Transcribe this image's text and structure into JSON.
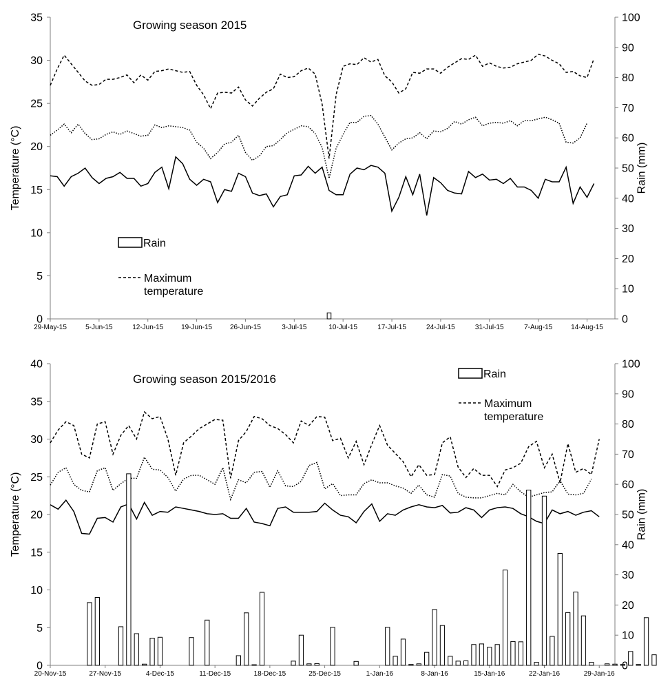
{
  "chart_data": [
    {
      "type": "line",
      "title": "Growing season 2015",
      "ylabel": "Temperature (°C)",
      "y2label": "Rain (mm)",
      "ylim": [
        0,
        35
      ],
      "y2lim": [
        0,
        100
      ],
      "yticks": [
        0,
        5,
        10,
        15,
        20,
        25,
        30,
        35
      ],
      "y2ticks": [
        0,
        10,
        20,
        30,
        40,
        50,
        60,
        70,
        80,
        90,
        100
      ],
      "xtick_labels": [
        "29-May-15",
        "5-Jun-15",
        "12-Jun-15",
        "19-Jun-15",
        "26-Jun-15",
        "3-Jul-15",
        "10-Jul-15",
        "17-Jul-15",
        "24-Jul-15",
        "31-Jul-15",
        "7-Aug-15",
        "14-Aug-15"
      ],
      "legend": [
        "Rain",
        "Maximum temperature"
      ],
      "legend_position": "left-middle",
      "series": [
        {
          "name": "Maximum temperature",
          "style": "dashed",
          "values": [
            27.1,
            29.0,
            30.6,
            29.6,
            28.6,
            27.6,
            27.1,
            27.2,
            27.8,
            27.8,
            28.0,
            28.3,
            27.4,
            28.3,
            27.7,
            28.7,
            28.8,
            29.0,
            28.8,
            28.6,
            28.7,
            27.1,
            26.0,
            24.4,
            26.2,
            26.3,
            26.2,
            26.9,
            25.4,
            24.7,
            25.6,
            26.3,
            26.7,
            28.4,
            28.0,
            28.1,
            28.8,
            29.1,
            28.4,
            24.9,
            18.6,
            26.0,
            29.3,
            29.6,
            29.5,
            30.3,
            29.8,
            30.1,
            28.2,
            27.5,
            26.2,
            26.7,
            28.6,
            28.5,
            29.0,
            29.0,
            28.5,
            29.2,
            29.7,
            30.2,
            30.1,
            30.6,
            29.3,
            29.7,
            29.3,
            29.1,
            29.2,
            29.6,
            29.8,
            30.0,
            30.7,
            30.5,
            30.0,
            29.6,
            28.6,
            28.7,
            28.2,
            28.0,
            30.2
          ]
        },
        {
          "name": "",
          "style": "dotted",
          "values": [
            21.3,
            21.9,
            22.6,
            21.6,
            22.6,
            21.5,
            20.8,
            20.9,
            21.4,
            21.7,
            21.4,
            21.8,
            21.5,
            21.2,
            21.3,
            22.5,
            22.2,
            22.4,
            22.3,
            22.2,
            21.9,
            20.5,
            19.8,
            18.6,
            19.3,
            20.3,
            20.5,
            21.3,
            19.3,
            18.4,
            18.9,
            20.0,
            20.1,
            20.8,
            21.6,
            22.0,
            22.4,
            22.3,
            21.5,
            19.9,
            16.3,
            19.8,
            21.4,
            22.8,
            22.8,
            23.5,
            23.6,
            22.6,
            21.1,
            19.6,
            20.4,
            20.9,
            21.0,
            21.6,
            20.9,
            21.8,
            21.7,
            22.1,
            22.9,
            22.6,
            23.1,
            23.4,
            22.4,
            22.7,
            22.8,
            22.7,
            23.0,
            22.4,
            23.0,
            23.0,
            23.2,
            23.4,
            23.1,
            22.7,
            20.5,
            20.4,
            21.0,
            22.7
          ]
        },
        {
          "name": "",
          "style": "solid",
          "values": [
            16.6,
            16.5,
            15.4,
            16.5,
            16.9,
            17.5,
            16.4,
            15.7,
            16.3,
            16.5,
            17.0,
            16.3,
            16.3,
            15.4,
            15.7,
            17.0,
            17.6,
            15.1,
            18.8,
            18.0,
            16.2,
            15.5,
            16.2,
            15.9,
            13.5,
            15.0,
            14.8,
            16.9,
            16.5,
            14.6,
            14.3,
            14.5,
            13.0,
            14.2,
            14.4,
            16.6,
            16.7,
            17.7,
            16.9,
            17.6,
            14.9,
            14.4,
            14.4,
            16.8,
            17.5,
            17.3,
            17.8,
            17.6,
            16.9,
            12.5,
            14.1,
            16.5,
            14.4,
            16.8,
            12.0,
            16.4,
            15.8,
            14.9,
            14.6,
            14.5,
            17.1,
            16.4,
            16.8,
            16.1,
            16.2,
            15.7,
            16.3,
            15.3,
            15.3,
            14.9,
            14.0,
            16.2,
            15.9,
            15.9,
            17.6,
            13.4,
            15.3,
            14.1,
            15.7
          ]
        },
        {
          "name": "Rain",
          "type": "bar",
          "axis": "right",
          "values": [
            {
              "x": 40,
              "y": 2.0
            }
          ]
        }
      ]
    },
    {
      "type": "line",
      "title": "Growing season 2015/2016",
      "ylabel": "Temperature (°C)",
      "y2label": "Rain (mm)",
      "ylim": [
        0,
        40
      ],
      "y2lim": [
        0,
        100
      ],
      "yticks": [
        0,
        5,
        10,
        15,
        20,
        25,
        30,
        35,
        40
      ],
      "y2ticks": [
        0,
        10,
        20,
        30,
        40,
        50,
        60,
        70,
        80,
        90,
        100
      ],
      "xtick_labels": [
        "20-Nov-15",
        "27-Nov-15",
        "4-Dec-15",
        "11-Dec-15",
        "18-Dec-15",
        "25-Dec-15",
        "1-Jan-16",
        "8-Jan-16",
        "15-Jan-16",
        "22-Jan-16",
        "29-Jan-16"
      ],
      "legend": [
        "Rain",
        "Maximum temperature"
      ],
      "legend_position": "top-right",
      "series": [
        {
          "name": "Maximum temperature",
          "style": "dashed",
          "values": [
            29.5,
            31.2,
            32.3,
            31.8,
            28.0,
            27.5,
            32.0,
            32.3,
            28.0,
            30.5,
            31.8,
            30.0,
            33.6,
            32.7,
            33.0,
            30.0,
            25.2,
            29.5,
            30.4,
            31.4,
            32.0,
            32.6,
            32.5,
            24.8,
            29.8,
            31.0,
            33.0,
            32.7,
            31.8,
            31.4,
            30.6,
            29.5,
            32.4,
            31.8,
            33.0,
            32.9,
            29.8,
            30.1,
            27.5,
            29.7,
            26.6,
            29.3,
            31.8,
            29.2,
            28.1,
            27.0,
            25.0,
            26.6,
            25.2,
            25.3,
            29.5,
            30.3,
            26.3,
            24.9,
            26.1,
            25.2,
            25.2,
            23.7,
            25.9,
            26.2,
            26.8,
            29.0,
            29.7,
            26.2,
            28.0,
            24.2,
            29.4,
            25.6,
            26.1,
            25.3,
            30.0
          ]
        },
        {
          "name": "",
          "style": "dotted",
          "values": [
            23.9,
            25.6,
            26.2,
            24.0,
            23.2,
            23.0,
            25.8,
            26.2,
            23.2,
            24.1,
            24.8,
            24.8,
            27.6,
            26.0,
            25.9,
            24.9,
            23.1,
            24.7,
            25.2,
            25.2,
            24.6,
            24.0,
            26.2,
            22.0,
            24.6,
            24.2,
            25.6,
            25.7,
            23.6,
            25.8,
            23.8,
            23.7,
            24.4,
            26.5,
            26.9,
            23.4,
            24.1,
            22.5,
            22.6,
            22.6,
            24.1,
            24.6,
            24.2,
            24.2,
            23.8,
            23.5,
            22.8,
            23.9,
            22.6,
            22.3,
            25.3,
            25.1,
            22.8,
            22.3,
            22.2,
            22.2,
            22.5,
            22.8,
            22.6,
            24.0,
            23.0,
            22.3,
            22.6,
            22.9,
            23.0,
            24.5,
            22.7,
            22.6,
            22.8,
            24.7
          ]
        },
        {
          "name": "",
          "style": "solid",
          "values": [
            21.3,
            20.7,
            21.9,
            20.4,
            17.5,
            17.4,
            19.5,
            19.6,
            19.0,
            21.0,
            21.4,
            19.4,
            21.6,
            19.9,
            20.4,
            20.3,
            21.0,
            20.8,
            20.6,
            20.4,
            20.1,
            20.0,
            20.1,
            19.5,
            19.5,
            20.8,
            19.0,
            18.8,
            18.5,
            20.8,
            21.0,
            20.3,
            20.3,
            20.3,
            20.4,
            21.5,
            20.6,
            19.9,
            19.7,
            18.9,
            20.4,
            21.4,
            19.1,
            20.1,
            19.9,
            20.6,
            21.0,
            21.3,
            21.0,
            20.9,
            21.2,
            20.2,
            20.3,
            20.9,
            20.6,
            19.6,
            20.6,
            20.9,
            21.0,
            20.8,
            20.1,
            19.7,
            19.1,
            18.8,
            20.6,
            20.1,
            20.4,
            19.9,
            20.3,
            20.5,
            19.7
          ]
        },
        {
          "name": "Rain",
          "type": "bar",
          "axis": "right",
          "values": [
            {
              "x": 5,
              "y": 20.8
            },
            {
              "x": 6,
              "y": 22.5
            },
            {
              "x": 9,
              "y": 12.8
            },
            {
              "x": 10,
              "y": 63.5
            },
            {
              "x": 11,
              "y": 10.5
            },
            {
              "x": 12,
              "y": 0.4
            },
            {
              "x": 13,
              "y": 9.0
            },
            {
              "x": 14,
              "y": 9.3
            },
            {
              "x": 18,
              "y": 9.2
            },
            {
              "x": 20,
              "y": 15.0
            },
            {
              "x": 24,
              "y": 3.2
            },
            {
              "x": 25,
              "y": 17.4
            },
            {
              "x": 26,
              "y": 0.2
            },
            {
              "x": 27,
              "y": 24.2
            },
            {
              "x": 31,
              "y": 1.4
            },
            {
              "x": 32,
              "y": 10.0
            },
            {
              "x": 33,
              "y": 0.5
            },
            {
              "x": 34,
              "y": 0.6
            },
            {
              "x": 36,
              "y": 12.6
            },
            {
              "x": 39,
              "y": 1.3
            },
            {
              "x": 43,
              "y": 12.6
            },
            {
              "x": 44,
              "y": 3.0
            },
            {
              "x": 45,
              "y": 8.7
            },
            {
              "x": 46,
              "y": 0.3
            },
            {
              "x": 47,
              "y": 0.5
            },
            {
              "x": 48,
              "y": 4.3
            },
            {
              "x": 49,
              "y": 18.5
            },
            {
              "x": 50,
              "y": 13.2
            },
            {
              "x": 51,
              "y": 3.0
            },
            {
              "x": 52,
              "y": 1.4
            },
            {
              "x": 53,
              "y": 1.5
            },
            {
              "x": 54,
              "y": 6.9
            },
            {
              "x": 55,
              "y": 7.1
            },
            {
              "x": 56,
              "y": 6.0
            },
            {
              "x": 57,
              "y": 6.9
            },
            {
              "x": 58,
              "y": 31.6
            },
            {
              "x": 59,
              "y": 7.9
            },
            {
              "x": 60,
              "y": 7.8
            },
            {
              "x": 61,
              "y": 58.1
            },
            {
              "x": 62,
              "y": 1.0
            },
            {
              "x": 63,
              "y": 56.1
            },
            {
              "x": 64,
              "y": 9.6
            },
            {
              "x": 65,
              "y": 37.1
            },
            {
              "x": 66,
              "y": 17.5
            },
            {
              "x": 67,
              "y": 24.3
            },
            {
              "x": 68,
              "y": 16.4
            },
            {
              "x": 69,
              "y": 1.0
            },
            {
              "x": 71,
              "y": 0.5
            },
            {
              "x": 72,
              "y": 0.4
            },
            {
              "x": 73,
              "y": 0.3
            },
            {
              "x": 74,
              "y": 4.6
            },
            {
              "x": 75,
              "y": 0.3
            },
            {
              "x": 76,
              "y": 15.8
            },
            {
              "x": 77,
              "y": 3.5
            }
          ]
        }
      ]
    }
  ]
}
